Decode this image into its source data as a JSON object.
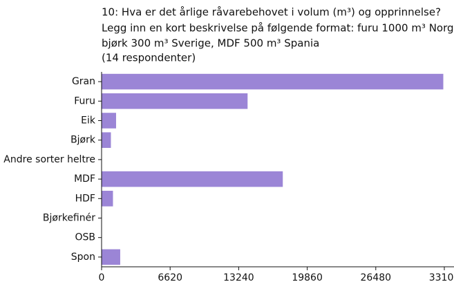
{
  "chart_data": {
    "type": "hbar",
    "title": [
      "10: Hva er det årlige råvarebehovet i volum (m³) og opprinnelse?",
      "Legg inn en kort beskrivelse på følgende format: furu 1000 m³ Norge,",
      "bjørk 300 m³ Sverige, MDF 500 m³ Spania",
      "(14 respondenter)"
    ],
    "categories": [
      "Gran",
      "Furu",
      "Eik",
      "Bjørk",
      "Andre sorter heltre",
      "MDF",
      "HDF",
      "Bjørkefinér",
      "OSB",
      "Spon"
    ],
    "values": [
      33000,
      14100,
      1400,
      900,
      0,
      17500,
      1100,
      0,
      0,
      1800
    ],
    "color": "#9b85d6",
    "xlim": [
      0,
      33100
    ],
    "xticks": [
      0,
      6620,
      13240,
      19860,
      26480,
      33100
    ],
    "grid": false
  }
}
